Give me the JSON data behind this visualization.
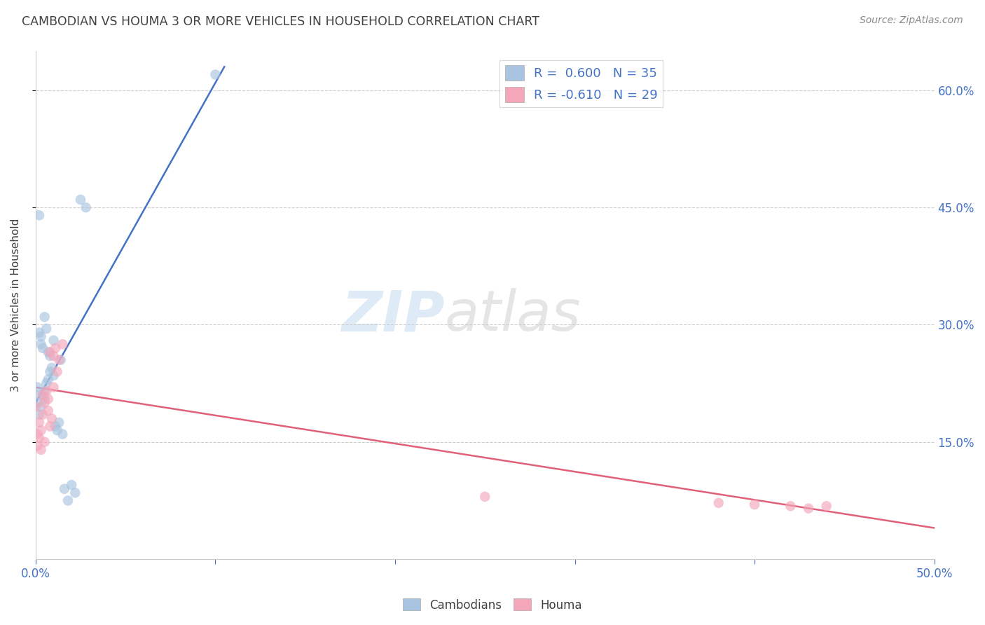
{
  "title": "CAMBODIAN VS HOUMA 3 OR MORE VEHICLES IN HOUSEHOLD CORRELATION CHART",
  "source": "Source: ZipAtlas.com",
  "xlabel_label": "Cambodians",
  "ylabel_label": "3 or more Vehicles in Household",
  "xlabel_houma": "Houma",
  "xlim": [
    0.0,
    0.5
  ],
  "ylim": [
    0.0,
    0.65
  ],
  "xticks": [
    0.0,
    0.1,
    0.2,
    0.3,
    0.4,
    0.5
  ],
  "yticks": [
    0.15,
    0.3,
    0.45,
    0.6
  ],
  "ytick_labels_right": [
    "15.0%",
    "30.0%",
    "45.0%",
    "60.0%"
  ],
  "xtick_labels_show": [
    "0.0%",
    "",
    "",
    "",
    "",
    "50.0%"
  ],
  "watermark_zip": "ZIP",
  "watermark_atlas": "atlas",
  "cambodian_R": 0.6,
  "cambodian_N": 35,
  "houma_R": -0.61,
  "houma_N": 29,
  "cambodian_color": "#a8c4e0",
  "houma_color": "#f4a7b9",
  "cambodian_line_color": "#4472c4",
  "houma_line_color": "#e0607a",
  "legend_text_color": "#4472c4",
  "title_color": "#404040",
  "source_color": "#888888",
  "grid_color": "#cccccc",
  "background_color": "#ffffff",
  "cambodian_x": [
    0.0,
    0.001,
    0.001,
    0.002,
    0.002,
    0.003,
    0.003,
    0.003,
    0.004,
    0.004,
    0.005,
    0.005,
    0.005,
    0.006,
    0.006,
    0.007,
    0.007,
    0.008,
    0.008,
    0.009,
    0.01,
    0.01,
    0.011,
    0.012,
    0.013,
    0.014,
    0.015,
    0.016,
    0.018,
    0.02,
    0.022,
    0.025,
    0.028,
    0.1,
    0.002
  ],
  "cambodian_y": [
    0.21,
    0.22,
    0.2,
    0.185,
    0.29,
    0.195,
    0.285,
    0.275,
    0.21,
    0.27,
    0.215,
    0.205,
    0.31,
    0.225,
    0.295,
    0.23,
    0.265,
    0.24,
    0.26,
    0.245,
    0.235,
    0.28,
    0.17,
    0.165,
    0.175,
    0.255,
    0.16,
    0.09,
    0.075,
    0.095,
    0.085,
    0.46,
    0.45,
    0.62,
    0.44
  ],
  "houma_x": [
    0.0,
    0.001,
    0.001,
    0.002,
    0.002,
    0.003,
    0.003,
    0.004,
    0.004,
    0.005,
    0.005,
    0.006,
    0.007,
    0.007,
    0.008,
    0.008,
    0.009,
    0.01,
    0.01,
    0.011,
    0.012,
    0.013,
    0.015,
    0.25,
    0.38,
    0.4,
    0.42,
    0.43,
    0.44
  ],
  "houma_y": [
    0.195,
    0.16,
    0.145,
    0.155,
    0.175,
    0.165,
    0.14,
    0.21,
    0.185,
    0.15,
    0.2,
    0.215,
    0.205,
    0.19,
    0.17,
    0.265,
    0.18,
    0.22,
    0.26,
    0.27,
    0.24,
    0.255,
    0.275,
    0.08,
    0.072,
    0.07,
    0.068,
    0.065,
    0.068
  ],
  "cambodian_line_x": [
    0.0,
    0.105
  ],
  "cambodian_line_y": [
    0.2,
    0.63
  ],
  "houma_line_x": [
    0.0,
    0.5
  ],
  "houma_line_y": [
    0.22,
    0.04
  ],
  "marker_size": 110,
  "marker_alpha": 0.65,
  "line_width": 1.8
}
